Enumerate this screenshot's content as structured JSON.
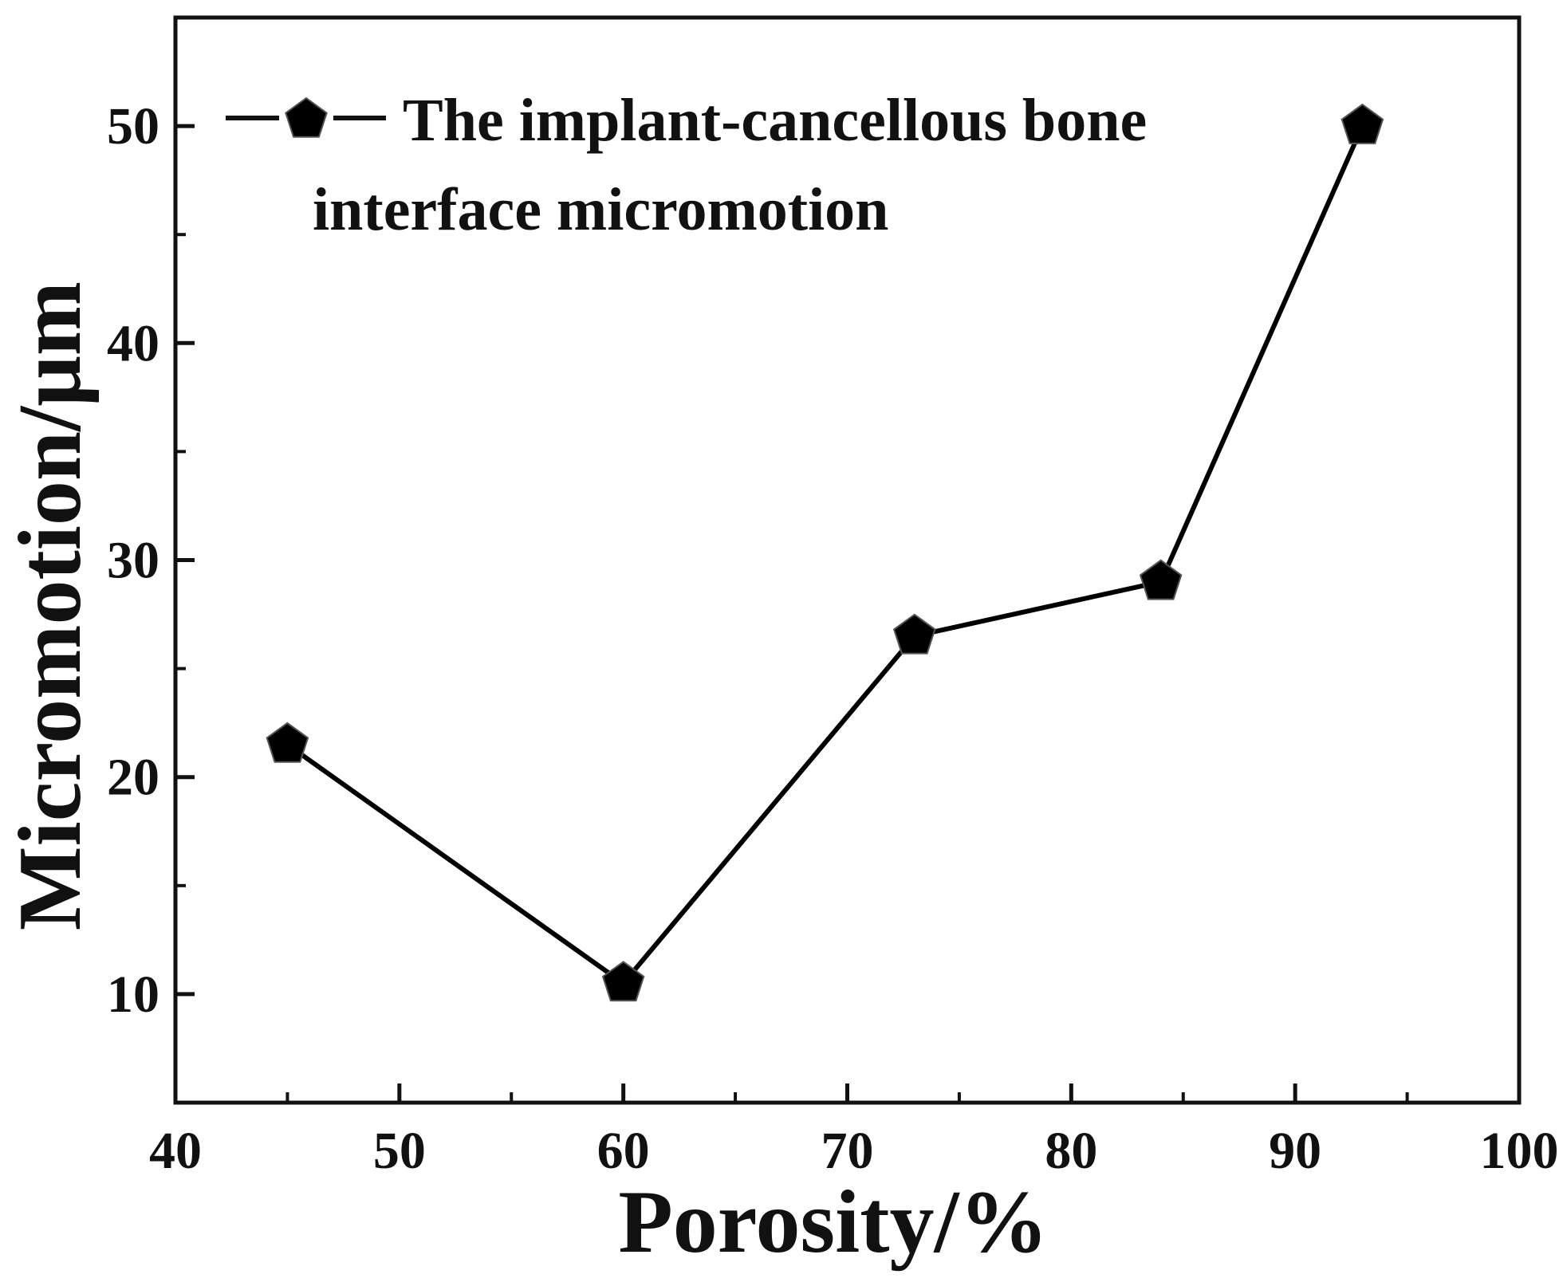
{
  "chart_data": {
    "type": "line",
    "title": "",
    "xlabel": "Porosity/%",
    "ylabel": "Micromotion/μm",
    "xlim": [
      40,
      100
    ],
    "ylim": [
      5,
      55
    ],
    "x_ticks": [
      40,
      50,
      60,
      70,
      80,
      90,
      100
    ],
    "y_ticks": [
      10,
      20,
      30,
      40,
      50
    ],
    "grid": false,
    "legend_position": "top-left",
    "series": [
      {
        "name": "The implant-cancellous bone interface micromotion",
        "legend_lines": [
          "The implant-cancellous bone",
          "interface micromotion"
        ],
        "marker": "pentagon",
        "color": "#000000",
        "x": [
          45,
          60,
          73,
          84,
          93
        ],
        "y": [
          21.5,
          10.5,
          26.5,
          29,
          50
        ]
      }
    ]
  }
}
